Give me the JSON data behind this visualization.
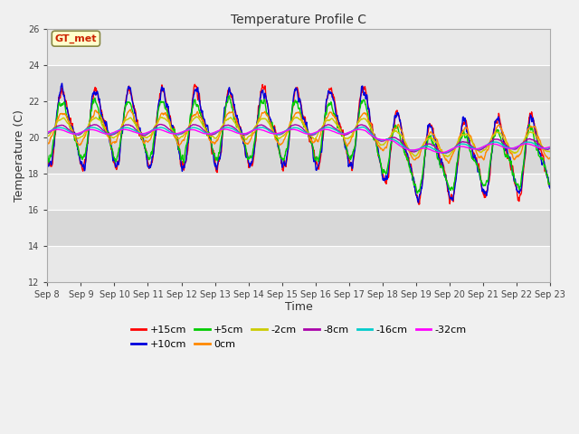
{
  "title": "Temperature Profile C",
  "xlabel": "Time",
  "ylabel": "Temperature (C)",
  "ylim": [
    12,
    26
  ],
  "yticks": [
    12,
    14,
    16,
    18,
    20,
    22,
    24,
    26
  ],
  "annotation_text": "GT_met",
  "series": [
    {
      "label": "+15cm",
      "color": "#ff0000"
    },
    {
      "label": "+10cm",
      "color": "#0000dd"
    },
    {
      "label": "+5cm",
      "color": "#00cc00"
    },
    {
      "label": "0cm",
      "color": "#ff8800"
    },
    {
      "label": "-2cm",
      "color": "#cccc00"
    },
    {
      "label": "-8cm",
      "color": "#aa00aa"
    },
    {
      "label": "-16cm",
      "color": "#00cccc"
    },
    {
      "label": "-32cm",
      "color": "#ff00ff"
    }
  ],
  "n_days": 15,
  "pts_per_day": 96,
  "seed": 42,
  "band_colors": [
    "#e8e8e8",
    "#d8d8d8"
  ]
}
